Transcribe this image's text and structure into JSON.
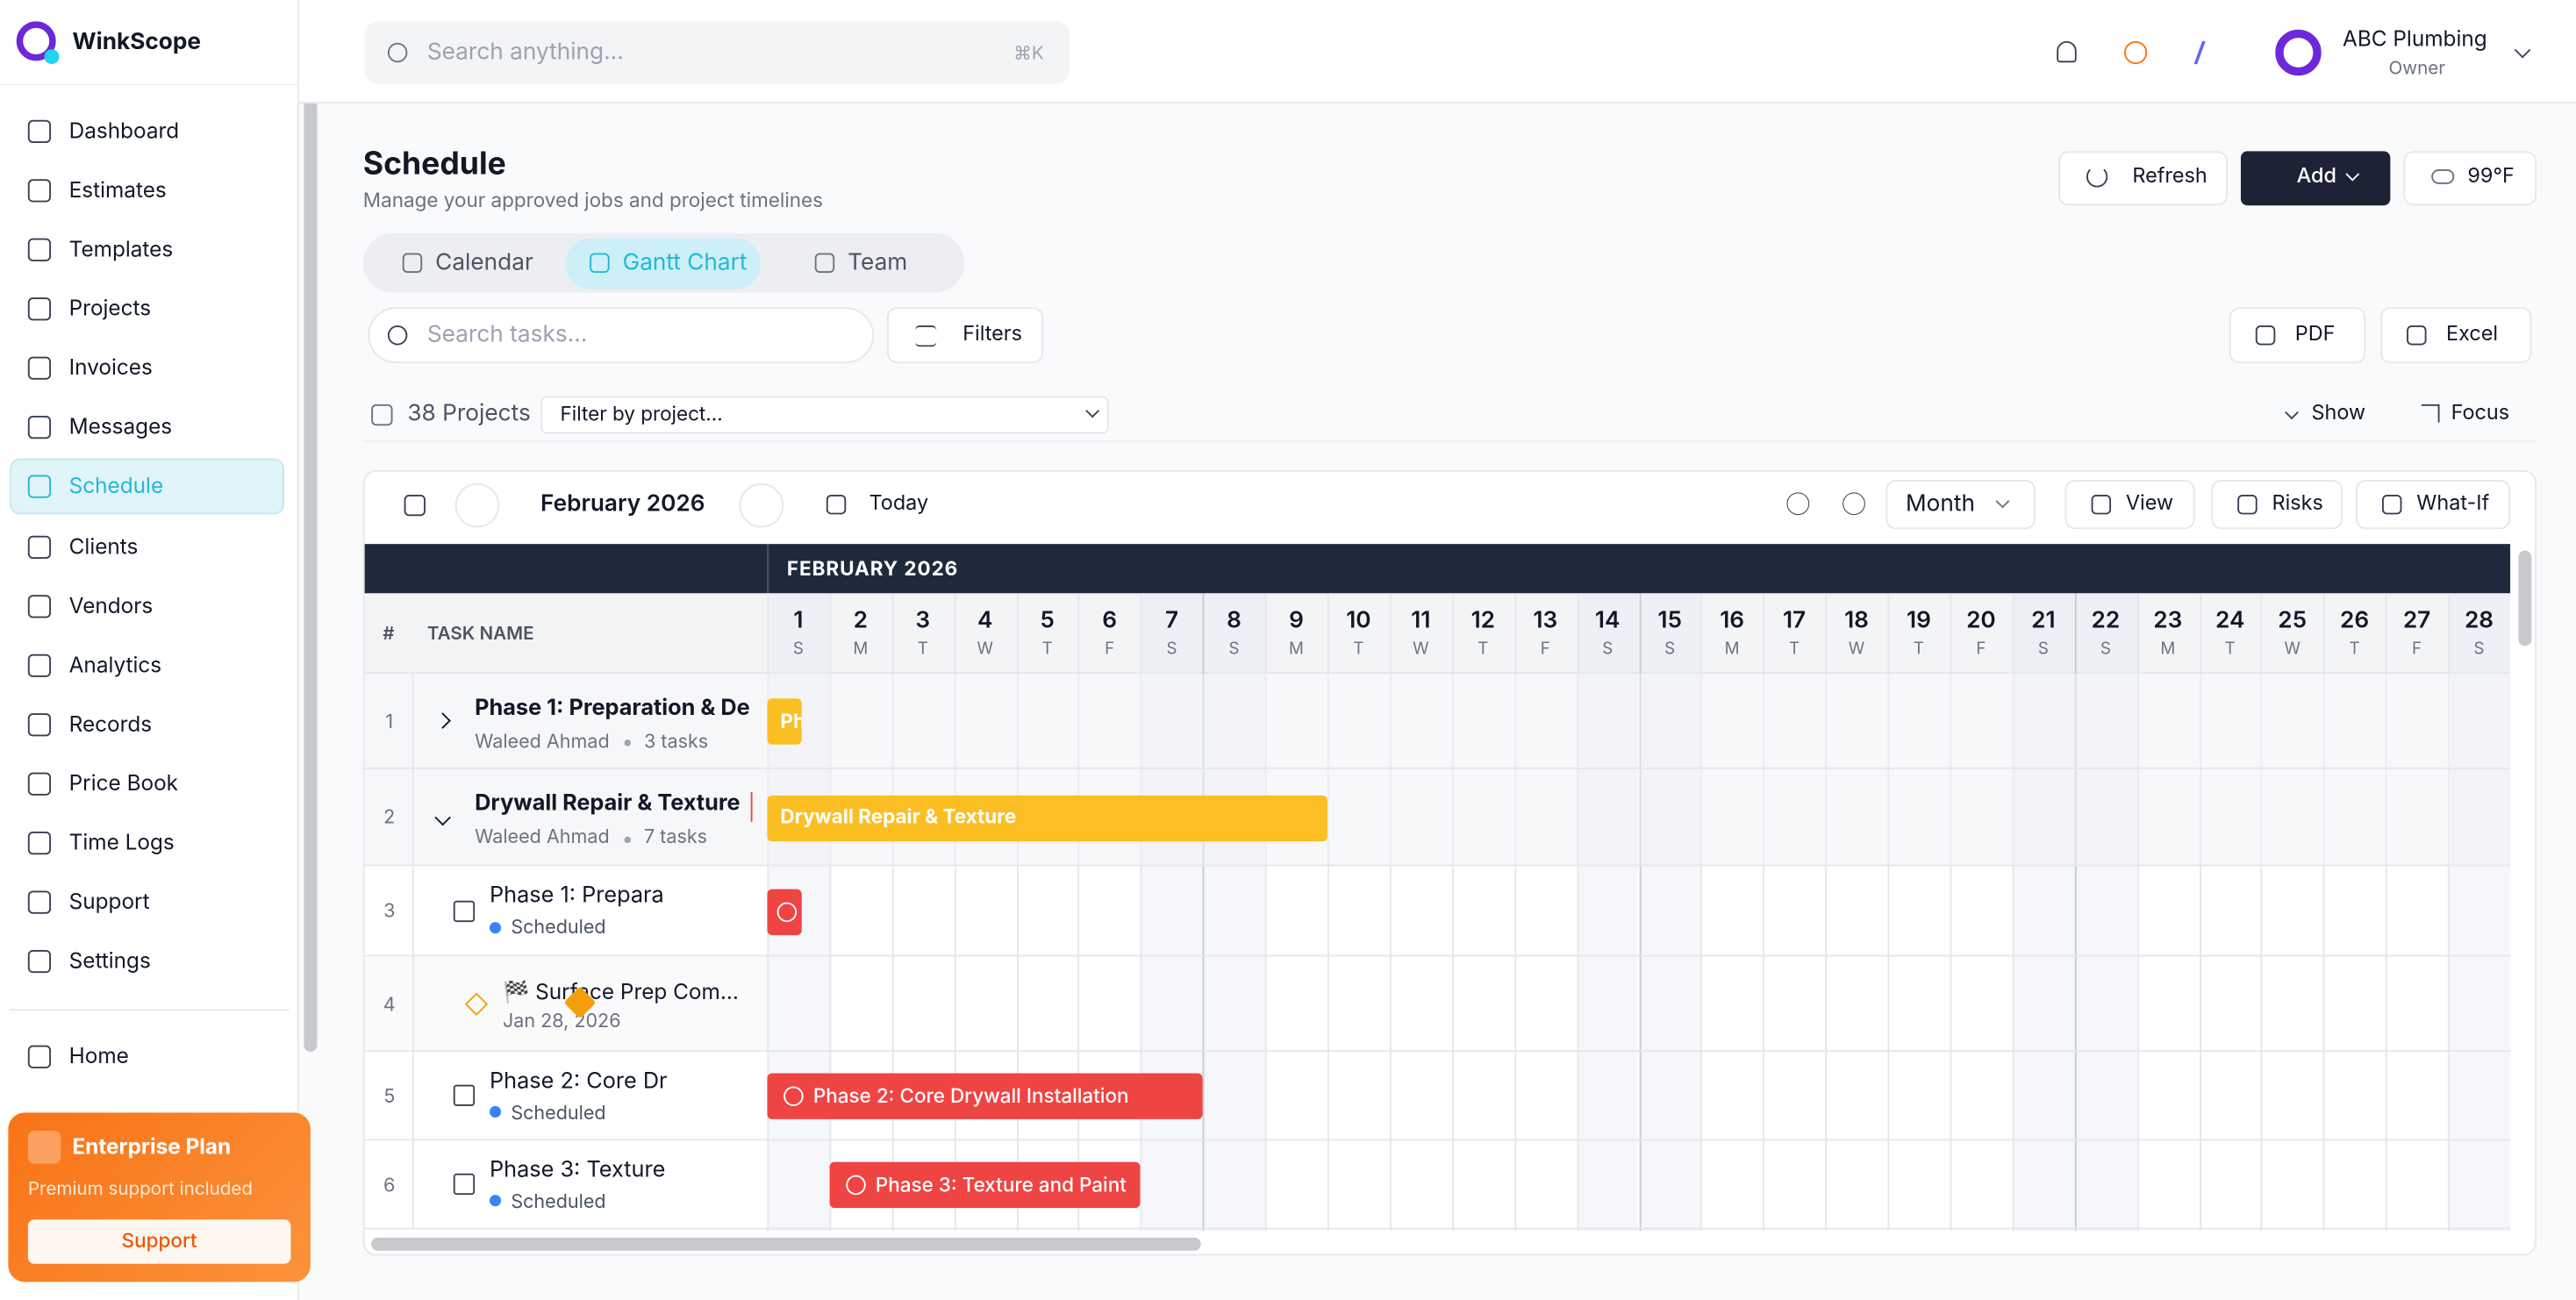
{
  "app": {
    "name": "WinkScope"
  },
  "search": {
    "placeholder": "Search anything...",
    "shortcut": "⌘K"
  },
  "nav": [
    {
      "label": "Dashboard"
    },
    {
      "label": "Estimates"
    },
    {
      "label": "Templates"
    },
    {
      "label": "Projects"
    },
    {
      "label": "Invoices"
    },
    {
      "label": "Messages"
    },
    {
      "label": "Schedule",
      "active": true
    },
    {
      "label": "Clients"
    },
    {
      "label": "Vendors"
    },
    {
      "label": "Analytics"
    },
    {
      "label": "Records"
    },
    {
      "label": "Price Book"
    },
    {
      "label": "Time Logs"
    },
    {
      "label": "Support"
    },
    {
      "label": "Settings"
    },
    {
      "label": "Home"
    }
  ],
  "plan": {
    "title": "Enterprise Plan",
    "subtitle": "Premium support included",
    "button": "Support"
  },
  "user": {
    "name": "ABC Plumbing",
    "role": "Owner"
  },
  "page": {
    "title": "Schedule",
    "subtitle": "Manage your approved jobs and project timelines",
    "buttons": [
      "Refresh",
      "Add"
    ],
    "weather": "99°F"
  },
  "tabs": [
    {
      "label": "Calendar"
    },
    {
      "label": "Gantt Chart",
      "active": true
    },
    {
      "label": "Team"
    }
  ],
  "toolbar": {
    "search": "Search tasks...",
    "filters": "Filters",
    "exports": [
      "PDF",
      "Excel"
    ],
    "projects": "38 Projects",
    "project_filter": "Filter by project...",
    "show": "Show",
    "focus": "Focus"
  },
  "gantt": {
    "period": "February 2026",
    "today": "Today",
    "zoom": "Month",
    "actions": [
      "View",
      "Risks",
      "What-If"
    ],
    "month_header": "FEBRUARY 2026",
    "col_num": "#",
    "col_task": "TASK NAME",
    "days": [
      {
        "d": 1,
        "w": "S"
      },
      {
        "d": 2,
        "w": "M"
      },
      {
        "d": 3,
        "w": "T"
      },
      {
        "d": 4,
        "w": "W"
      },
      {
        "d": 5,
        "w": "T"
      },
      {
        "d": 6,
        "w": "F"
      },
      {
        "d": 7,
        "w": "S"
      },
      {
        "d": 8,
        "w": "S"
      },
      {
        "d": 9,
        "w": "M"
      },
      {
        "d": 10,
        "w": "T"
      },
      {
        "d": 11,
        "w": "W"
      },
      {
        "d": 12,
        "w": "T"
      },
      {
        "d": 13,
        "w": "F"
      },
      {
        "d": 14,
        "w": "S"
      },
      {
        "d": 15,
        "w": "S"
      },
      {
        "d": 16,
        "w": "M"
      },
      {
        "d": 17,
        "w": "T"
      },
      {
        "d": 18,
        "w": "W"
      },
      {
        "d": 19,
        "w": "T"
      },
      {
        "d": 20,
        "w": "F"
      },
      {
        "d": 21,
        "w": "S"
      },
      {
        "d": 22,
        "w": "S"
      },
      {
        "d": 23,
        "w": "M"
      },
      {
        "d": 24,
        "w": "T"
      },
      {
        "d": 25,
        "w": "W"
      },
      {
        "d": 26,
        "w": "T"
      },
      {
        "d": 27,
        "w": "F"
      },
      {
        "d": 28,
        "w": "S"
      }
    ],
    "rows": [
      {
        "num": 1,
        "kind": "group",
        "title": "Phase 1: Preparation & De",
        "owner": "Waleed Ahmad",
        "count": "3 tasks",
        "bar": {
          "label": "Ph",
          "start": 1,
          "end": 1,
          "color": "#fbbf24"
        }
      },
      {
        "num": 2,
        "kind": "group",
        "title": "Drywall Repair & Texture",
        "owner": "Waleed Ahmad",
        "count": "7 tasks",
        "bar": {
          "label": "Drywall Repair & Texture",
          "start": 1,
          "end": 9,
          "color": "#fbbf24"
        }
      },
      {
        "num": 3,
        "kind": "task",
        "title": "Phase 1: Prepara",
        "status": "Scheduled",
        "bar": {
          "start": 1,
          "end": 1,
          "color": "#ef4444"
        }
      },
      {
        "num": 4,
        "kind": "milestone",
        "title": "🏁 Surface Prep Com...",
        "date": "Jan 28, 2026"
      },
      {
        "num": 5,
        "kind": "task",
        "title": "Phase 2: Core Dr",
        "status": "Scheduled",
        "bar": {
          "label": "Phase 2: Core Drywall Installation",
          "start": 1,
          "end": 7,
          "color": "#ef4444"
        }
      },
      {
        "num": 6,
        "kind": "task",
        "title": "Phase 3: Texture",
        "status": "Scheduled",
        "bar": {
          "label": "Phase 3: Texture and Paint",
          "start": 2,
          "end": 6,
          "color": "#ef4444"
        }
      }
    ]
  }
}
